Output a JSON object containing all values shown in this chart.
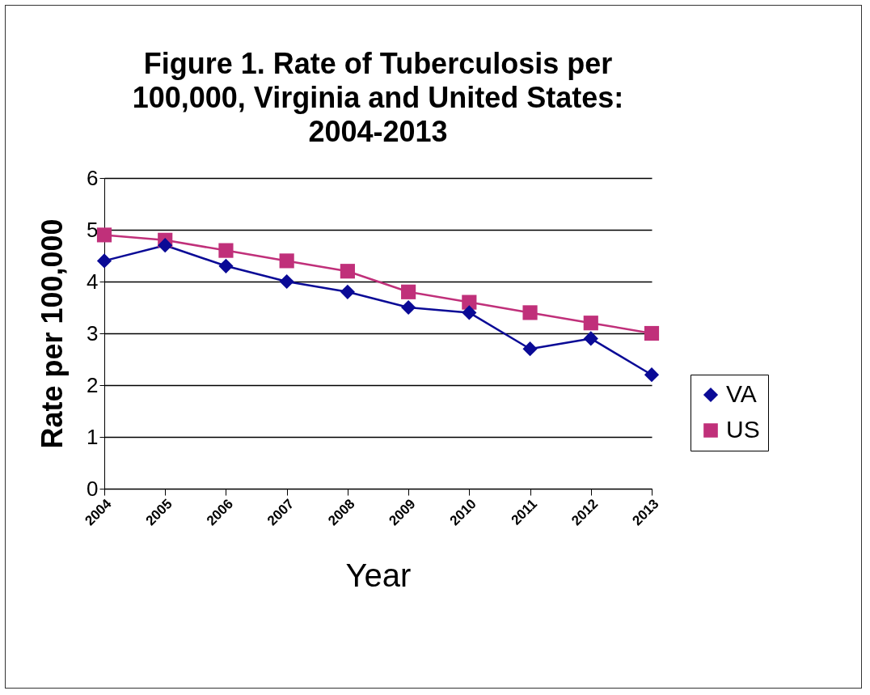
{
  "chart_data": {
    "type": "line",
    "title": "Figure 1. Rate of Tuberculosis per 100,000, Virginia and United States: 2004-2013",
    "xlabel": "Year",
    "ylabel": "Rate per 100,000",
    "categories": [
      "2004",
      "2005",
      "2006",
      "2007",
      "2008",
      "2009",
      "2010",
      "2011",
      "2012",
      "2013"
    ],
    "series": [
      {
        "name": "VA",
        "color": "#0a0a96",
        "marker": "diamond",
        "values": [
          4.4,
          4.7,
          4.3,
          4.0,
          3.8,
          3.5,
          3.4,
          2.7,
          2.9,
          2.2
        ]
      },
      {
        "name": "US",
        "color": "#c0307a",
        "marker": "square",
        "values": [
          4.9,
          4.8,
          4.6,
          4.4,
          4.2,
          3.8,
          3.6,
          3.4,
          3.2,
          3.0
        ]
      }
    ],
    "ylim": [
      0,
      6
    ],
    "yticks": [
      0,
      1,
      2,
      3,
      4,
      5,
      6
    ],
    "grid": "y",
    "legend": "right",
    "line_style": "solid"
  }
}
